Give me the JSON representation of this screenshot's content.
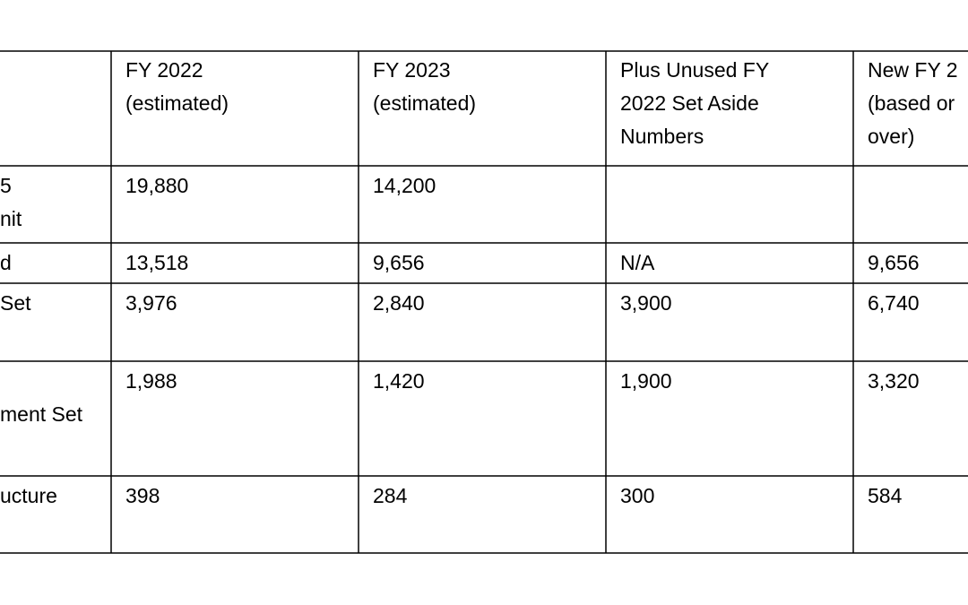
{
  "table": {
    "header": [
      [
        "FY 2022",
        "(estimated)"
      ],
      [
        "FY 2023",
        "(estimated)"
      ],
      [
        "Plus Unused FY",
        "2022 Set Aside",
        "Numbers"
      ],
      [
        "New FY 2",
        "(based or",
        "over)"
      ]
    ],
    "rows": [
      {
        "label": [
          "5",
          "nit"
        ],
        "cells": [
          [
            "19,880"
          ],
          [
            "14,200"
          ]
        ]
      },
      {
        "label": [
          "d"
        ],
        "cells": [
          [
            "13,518"
          ],
          [
            "9,656"
          ],
          [
            "N/A"
          ],
          [
            "9,656"
          ]
        ]
      },
      {
        "label": [
          "Set"
        ],
        "cells": [
          [
            "3,976"
          ],
          [
            "2,840"
          ],
          [
            "3,900"
          ],
          [
            "6,740"
          ]
        ]
      },
      {
        "label": [
          "",
          "ment Set"
        ],
        "cells": [
          [
            "1,988"
          ],
          [
            "1,420"
          ],
          [
            "1,900"
          ],
          [
            "3,320"
          ]
        ]
      },
      {
        "label": [
          "ucture"
        ],
        "cells": [
          [
            "398"
          ],
          [
            "284"
          ],
          [
            "300"
          ],
          [
            "584"
          ]
        ]
      }
    ]
  }
}
